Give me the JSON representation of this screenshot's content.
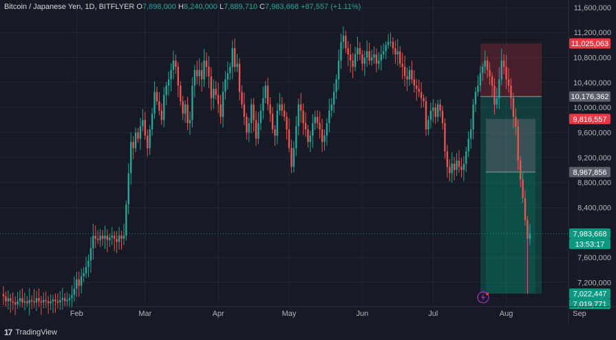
{
  "header": {
    "symbol": "Bitcoin / Japanese Yen, 1D, BITFLYER",
    "open_label": "O",
    "open": "7,898,000",
    "high_label": "H",
    "high": "8,240,000",
    "low_label": "L",
    "low": "7,889,710",
    "close_label": "C",
    "close": "7,983,668",
    "change": "+87,557 (+1.11%)"
  },
  "footer": {
    "brand": "TradingView",
    "logo_text": "17"
  },
  "chart_data": {
    "type": "candlestick",
    "ylim": [
      6820000,
      11720000
    ],
    "x_ticks": [
      "Feb",
      "Mar",
      "Apr",
      "May",
      "Jun",
      "Jul",
      "Aug",
      "Sep"
    ],
    "y_ticks": [
      "11,600,000",
      "11,200,000",
      "10,800,000",
      "10,400,000",
      "10,000,000",
      "9,600,000",
      "9,200,000",
      "8,800,000",
      "8,400,000",
      "7,600,000",
      "7,200,000"
    ],
    "y_tick_values": [
      11600000,
      11200000,
      10800000,
      10400000,
      10000000,
      9600000,
      9200000,
      8800000,
      8400000,
      7600000,
      7200000
    ],
    "colors": {
      "up": "#26a69a",
      "down": "#ef5350",
      "background": "#161a25",
      "grid": "#232632"
    },
    "month_days": {
      "Feb": 31,
      "Mar": 60,
      "Apr": 91,
      "May": 121,
      "Jun": 152,
      "Jul": 182,
      "Aug": 213,
      "Sep": 244
    },
    "first_day": 0,
    "closes": [
      6980000,
      6900000,
      6950000,
      6900000,
      6880000,
      6850000,
      6900000,
      6950000,
      6880000,
      6900000,
      6870000,
      6920000,
      6900000,
      6880000,
      6950000,
      6900000,
      6880000,
      6920000,
      6900000,
      6870000,
      6900000,
      6930000,
      6900000,
      6880000,
      6920000,
      6950000,
      6900000,
      6920000,
      6950000,
      7000000,
      7100000,
      7250000,
      7150000,
      7300000,
      7350000,
      7450000,
      7550000,
      7750000,
      7950000,
      7900000,
      7880000,
      7950000,
      7900000,
      7950000,
      7880000,
      7920000,
      7950000,
      7900000,
      7850000,
      7950000,
      7900000,
      7950000,
      8450000,
      8950000,
      9450000,
      9350000,
      9600000,
      9500000,
      9700000,
      9800000,
      9550000,
      9350000,
      9650000,
      9900000,
      10250000,
      10100000,
      9950000,
      9800000,
      10200000,
      10350000,
      10450000,
      10600000,
      10750000,
      10650000,
      10350000,
      10100000,
      9900000,
      10050000,
      9750000,
      9800000,
      10350000,
      10600000,
      10500000,
      10600000,
      10450000,
      10750000,
      10650000,
      10500000,
      10150000,
      10300000,
      10200000,
      10050000,
      9850000,
      10250000,
      10450000,
      10550000,
      10650000,
      10950000,
      10650000,
      10700000,
      10250000,
      10050000,
      9850000,
      9600000,
      9750000,
      10050000,
      9800000,
      9500000,
      9750000,
      9950000,
      10150000,
      10350000,
      10050000,
      9900000,
      9650000,
      9550000,
      9950000,
      10050000,
      9950000,
      9850000,
      9650000,
      9350000,
      9050000,
      9350000,
      9700000,
      10050000,
      9950000,
      9750000,
      9650000,
      9450000,
      9550000,
      9750000,
      9850000,
      9750000,
      9650000,
      9450000,
      9550000,
      9750000,
      9950000,
      10050000,
      10250000,
      10450000,
      10750000,
      11050000,
      11150000,
      10950000,
      10850000,
      10750000,
      10650000,
      10850000,
      10950000,
      10850000,
      10700000,
      10800000,
      10900000,
      10750000,
      10800000,
      10850000,
      10700000,
      10750000,
      10850000,
      10900000,
      11000000,
      11050000,
      11050000,
      10950000,
      10850000,
      10900000,
      10700000,
      10650000,
      10500000,
      10450000,
      10600000,
      10450000,
      10350000,
      10300000,
      10250000,
      10150000,
      10100000,
      9650000,
      9800000,
      9950000,
      10000000,
      9850000,
      10050000,
      9950000,
      9750000,
      9300000,
      9050000,
      8950000,
      9100000,
      9000000,
      9150000,
      9050000,
      9000000,
      9100000,
      9300000,
      9500000,
      9650000,
      10050000,
      10250000,
      10350000,
      10550000,
      10650000,
      10750000,
      10600000,
      10500000,
      10350000,
      10050000,
      10150000,
      10450000,
      10750000,
      10650000,
      10450000,
      10350000,
      10150000,
      9850000,
      9700000,
      9150000,
      8850000,
      8550000,
      8200000,
      7900000,
      7983668
    ],
    "position": {
      "target_price": 11025063,
      "entry_price": 10176362,
      "stop_price": 7022447,
      "inner_top": 9816557,
      "inner_mid": 8967856
    },
    "price_labels": [
      {
        "text": "11,025,063",
        "value": 11025063,
        "color": "#f23645"
      },
      {
        "text": "10,176,362",
        "value": 10176362,
        "color": "#5d606b"
      },
      {
        "text": "9,816,557",
        "value": 9816557,
        "color": "#f23645"
      },
      {
        "text": "8,967,856",
        "value": 8967856,
        "color": "#5d606b"
      },
      {
        "text": "7,983,668",
        "value": 7983668,
        "color": "#089981"
      },
      {
        "text": "13:53:17",
        "value": 7983668,
        "color": "#089981"
      },
      {
        "text": "7,022,447",
        "value": 7022447,
        "color": "#089981"
      },
      {
        "text": "7,019,771",
        "value": 7019771,
        "color": "#089981"
      }
    ]
  }
}
